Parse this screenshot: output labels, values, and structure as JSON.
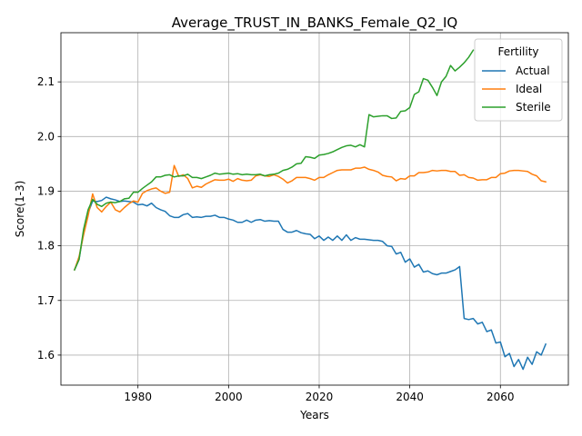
{
  "chart_data": {
    "type": "line",
    "title": "Average_TRUST_IN_BANKS_Female_Q2_IQ",
    "xlabel": "Years",
    "ylabel": "Score(1-3)",
    "xlim": [
      1963,
      2075
    ],
    "ylim": [
      1.545,
      2.19
    ],
    "xticks": [
      1980,
      2000,
      2020,
      2040,
      2060
    ],
    "yticks": [
      1.6,
      1.7,
      1.8,
      1.9,
      2.0,
      2.1
    ],
    "grid": true,
    "legend": {
      "title": "Fertility",
      "placement": "top-right"
    },
    "series": [
      {
        "name": "Actual",
        "color": "#1f77b4",
        "points": [
          [
            1966,
            1.756
          ],
          [
            1967,
            1.775
          ],
          [
            1968,
            1.825
          ],
          [
            1969,
            1.86
          ],
          [
            1970,
            1.882
          ],
          [
            1971,
            1.881
          ],
          [
            1972,
            1.883
          ],
          [
            1973,
            1.889
          ],
          [
            1974,
            1.886
          ],
          [
            1975,
            1.884
          ],
          [
            1976,
            1.881
          ],
          [
            1977,
            1.882
          ],
          [
            1978,
            1.881
          ],
          [
            1979,
            1.88
          ],
          [
            1980,
            1.875
          ],
          [
            1981,
            1.876
          ],
          [
            1982,
            1.873
          ],
          [
            1983,
            1.878
          ],
          [
            1984,
            1.87
          ],
          [
            1985,
            1.866
          ],
          [
            1986,
            1.863
          ],
          [
            1987,
            1.855
          ],
          [
            1988,
            1.852
          ],
          [
            1989,
            1.852
          ],
          [
            1990,
            1.857
          ],
          [
            1991,
            1.859
          ],
          [
            1992,
            1.852
          ],
          [
            1993,
            1.853
          ],
          [
            1994,
            1.852
          ],
          [
            1995,
            1.854
          ],
          [
            1996,
            1.854
          ],
          [
            1997,
            1.856
          ],
          [
            1998,
            1.852
          ],
          [
            1999,
            1.852
          ],
          [
            2000,
            1.849
          ],
          [
            2001,
            1.847
          ],
          [
            2002,
            1.843
          ],
          [
            2003,
            1.843
          ],
          [
            2004,
            1.847
          ],
          [
            2005,
            1.843
          ],
          [
            2006,
            1.847
          ],
          [
            2007,
            1.848
          ],
          [
            2008,
            1.845
          ],
          [
            2009,
            1.846
          ],
          [
            2010,
            1.845
          ],
          [
            2011,
            1.845
          ],
          [
            2012,
            1.83
          ],
          [
            2013,
            1.825
          ],
          [
            2014,
            1.825
          ],
          [
            2015,
            1.828
          ],
          [
            2016,
            1.824
          ],
          [
            2017,
            1.822
          ],
          [
            2018,
            1.821
          ],
          [
            2019,
            1.813
          ],
          [
            2020,
            1.818
          ],
          [
            2021,
            1.81
          ],
          [
            2022,
            1.816
          ],
          [
            2023,
            1.81
          ],
          [
            2024,
            1.818
          ],
          [
            2025,
            1.81
          ],
          [
            2026,
            1.82
          ],
          [
            2027,
            1.81
          ],
          [
            2028,
            1.815
          ],
          [
            2029,
            1.812
          ],
          [
            2030,
            1.812
          ],
          [
            2031,
            1.811
          ],
          [
            2032,
            1.81
          ],
          [
            2033,
            1.81
          ],
          [
            2034,
            1.808
          ],
          [
            2035,
            1.8
          ],
          [
            2036,
            1.799
          ],
          [
            2037,
            1.785
          ],
          [
            2038,
            1.788
          ],
          [
            2039,
            1.77
          ],
          [
            2040,
            1.776
          ],
          [
            2041,
            1.761
          ],
          [
            2042,
            1.766
          ],
          [
            2043,
            1.752
          ],
          [
            2044,
            1.754
          ],
          [
            2045,
            1.749
          ],
          [
            2046,
            1.747
          ],
          [
            2047,
            1.75
          ],
          [
            2048,
            1.75
          ],
          [
            2049,
            1.753
          ],
          [
            2050,
            1.756
          ],
          [
            2051,
            1.762
          ],
          [
            2052,
            1.667
          ],
          [
            2053,
            1.665
          ],
          [
            2054,
            1.667
          ],
          [
            2055,
            1.657
          ],
          [
            2056,
            1.66
          ],
          [
            2057,
            1.643
          ],
          [
            2058,
            1.646
          ],
          [
            2059,
            1.622
          ],
          [
            2060,
            1.624
          ],
          [
            2061,
            1.597
          ],
          [
            2062,
            1.603
          ],
          [
            2063,
            1.579
          ],
          [
            2064,
            1.592
          ],
          [
            2065,
            1.574
          ],
          [
            2066,
            1.596
          ],
          [
            2067,
            1.583
          ],
          [
            2068,
            1.606
          ],
          [
            2069,
            1.6
          ],
          [
            2070,
            1.62
          ]
        ]
      },
      {
        "name": "Ideal",
        "color": "#ff7f0e",
        "points": [
          [
            1966,
            1.756
          ],
          [
            1967,
            1.78
          ],
          [
            1968,
            1.82
          ],
          [
            1969,
            1.855
          ],
          [
            1970,
            1.895
          ],
          [
            1971,
            1.87
          ],
          [
            1972,
            1.862
          ],
          [
            1973,
            1.872
          ],
          [
            1974,
            1.88
          ],
          [
            1975,
            1.866
          ],
          [
            1976,
            1.862
          ],
          [
            1977,
            1.87
          ],
          [
            1978,
            1.877
          ],
          [
            1979,
            1.882
          ],
          [
            1980,
            1.88
          ],
          [
            1981,
            1.896
          ],
          [
            1982,
            1.901
          ],
          [
            1983,
            1.904
          ],
          [
            1984,
            1.906
          ],
          [
            1985,
            1.9
          ],
          [
            1986,
            1.896
          ],
          [
            1987,
            1.898
          ],
          [
            1988,
            1.947
          ],
          [
            1989,
            1.927
          ],
          [
            1990,
            1.93
          ],
          [
            1991,
            1.923
          ],
          [
            1992,
            1.906
          ],
          [
            1993,
            1.909
          ],
          [
            1994,
            1.907
          ],
          [
            1995,
            1.913
          ],
          [
            1996,
            1.917
          ],
          [
            1997,
            1.921
          ],
          [
            1998,
            1.92
          ],
          [
            1999,
            1.92
          ],
          [
            2000,
            1.922
          ],
          [
            2001,
            1.918
          ],
          [
            2002,
            1.923
          ],
          [
            2003,
            1.92
          ],
          [
            2004,
            1.919
          ],
          [
            2005,
            1.92
          ],
          [
            2006,
            1.928
          ],
          [
            2007,
            1.93
          ],
          [
            2008,
            1.928
          ],
          [
            2009,
            1.927
          ],
          [
            2010,
            1.93
          ],
          [
            2011,
            1.927
          ],
          [
            2012,
            1.922
          ],
          [
            2013,
            1.915
          ],
          [
            2014,
            1.919
          ],
          [
            2015,
            1.925
          ],
          [
            2016,
            1.925
          ],
          [
            2017,
            1.925
          ],
          [
            2018,
            1.923
          ],
          [
            2019,
            1.92
          ],
          [
            2020,
            1.925
          ],
          [
            2021,
            1.925
          ],
          [
            2022,
            1.93
          ],
          [
            2023,
            1.934
          ],
          [
            2024,
            1.938
          ],
          [
            2025,
            1.939
          ],
          [
            2026,
            1.939
          ],
          [
            2027,
            1.939
          ],
          [
            2028,
            1.942
          ],
          [
            2029,
            1.942
          ],
          [
            2030,
            1.944
          ],
          [
            2031,
            1.94
          ],
          [
            2032,
            1.938
          ],
          [
            2033,
            1.935
          ],
          [
            2034,
            1.929
          ],
          [
            2035,
            1.927
          ],
          [
            2036,
            1.926
          ],
          [
            2037,
            1.919
          ],
          [
            2038,
            1.923
          ],
          [
            2039,
            1.922
          ],
          [
            2040,
            1.928
          ],
          [
            2041,
            1.928
          ],
          [
            2042,
            1.934
          ],
          [
            2043,
            1.934
          ],
          [
            2044,
            1.935
          ],
          [
            2045,
            1.938
          ],
          [
            2046,
            1.937
          ],
          [
            2047,
            1.938
          ],
          [
            2048,
            1.938
          ],
          [
            2049,
            1.936
          ],
          [
            2050,
            1.936
          ],
          [
            2051,
            1.929
          ],
          [
            2052,
            1.93
          ],
          [
            2053,
            1.925
          ],
          [
            2054,
            1.924
          ],
          [
            2055,
            1.92
          ],
          [
            2056,
            1.921
          ],
          [
            2057,
            1.921
          ],
          [
            2058,
            1.925
          ],
          [
            2059,
            1.925
          ],
          [
            2060,
            1.932
          ],
          [
            2061,
            1.933
          ],
          [
            2062,
            1.937
          ],
          [
            2063,
            1.938
          ],
          [
            2064,
            1.938
          ],
          [
            2065,
            1.937
          ],
          [
            2066,
            1.936
          ],
          [
            2067,
            1.931
          ],
          [
            2068,
            1.928
          ],
          [
            2069,
            1.919
          ],
          [
            2070,
            1.917
          ]
        ]
      },
      {
        "name": "Sterile",
        "color": "#2ca02c",
        "points": [
          [
            1966,
            1.756
          ],
          [
            1967,
            1.775
          ],
          [
            1968,
            1.83
          ],
          [
            1969,
            1.866
          ],
          [
            1970,
            1.885
          ],
          [
            1971,
            1.876
          ],
          [
            1972,
            1.872
          ],
          [
            1973,
            1.878
          ],
          [
            1974,
            1.88
          ],
          [
            1975,
            1.879
          ],
          [
            1976,
            1.881
          ],
          [
            1977,
            1.886
          ],
          [
            1978,
            1.887
          ],
          [
            1979,
            1.898
          ],
          [
            1980,
            1.898
          ],
          [
            1981,
            1.905
          ],
          [
            1982,
            1.911
          ],
          [
            1983,
            1.917
          ],
          [
            1984,
            1.926
          ],
          [
            1985,
            1.926
          ],
          [
            1986,
            1.929
          ],
          [
            1987,
            1.93
          ],
          [
            1988,
            1.926
          ],
          [
            1989,
            1.928
          ],
          [
            1990,
            1.928
          ],
          [
            1991,
            1.931
          ],
          [
            1992,
            1.925
          ],
          [
            1993,
            1.925
          ],
          [
            1994,
            1.923
          ],
          [
            1995,
            1.926
          ],
          [
            1996,
            1.929
          ],
          [
            1997,
            1.933
          ],
          [
            1998,
            1.931
          ],
          [
            1999,
            1.932
          ],
          [
            2000,
            1.933
          ],
          [
            2001,
            1.931
          ],
          [
            2002,
            1.932
          ],
          [
            2003,
            1.93
          ],
          [
            2004,
            1.931
          ],
          [
            2005,
            1.93
          ],
          [
            2006,
            1.93
          ],
          [
            2007,
            1.931
          ],
          [
            2008,
            1.928
          ],
          [
            2009,
            1.93
          ],
          [
            2010,
            1.931
          ],
          [
            2011,
            1.933
          ],
          [
            2012,
            1.938
          ],
          [
            2013,
            1.94
          ],
          [
            2014,
            1.944
          ],
          [
            2015,
            1.95
          ],
          [
            2016,
            1.951
          ],
          [
            2017,
            1.963
          ],
          [
            2018,
            1.962
          ],
          [
            2019,
            1.96
          ],
          [
            2020,
            1.966
          ],
          [
            2021,
            1.967
          ],
          [
            2022,
            1.969
          ],
          [
            2023,
            1.972
          ],
          [
            2024,
            1.976
          ],
          [
            2025,
            1.98
          ],
          [
            2026,
            1.983
          ],
          [
            2027,
            1.984
          ],
          [
            2028,
            1.981
          ],
          [
            2029,
            1.985
          ],
          [
            2030,
            1.981
          ],
          [
            2031,
            2.04
          ],
          [
            2032,
            2.036
          ],
          [
            2033,
            2.037
          ],
          [
            2034,
            2.038
          ],
          [
            2035,
            2.038
          ],
          [
            2036,
            2.033
          ],
          [
            2037,
            2.034
          ],
          [
            2038,
            2.046
          ],
          [
            2039,
            2.047
          ],
          [
            2040,
            2.053
          ],
          [
            2041,
            2.077
          ],
          [
            2042,
            2.082
          ],
          [
            2043,
            2.106
          ],
          [
            2044,
            2.103
          ],
          [
            2045,
            2.09
          ],
          [
            2046,
            2.075
          ],
          [
            2047,
            2.1
          ],
          [
            2048,
            2.11
          ],
          [
            2049,
            2.13
          ],
          [
            2050,
            2.12
          ],
          [
            2051,
            2.127
          ],
          [
            2052,
            2.135
          ],
          [
            2053,
            2.145
          ],
          [
            2054,
            2.158
          ]
        ]
      }
    ]
  }
}
